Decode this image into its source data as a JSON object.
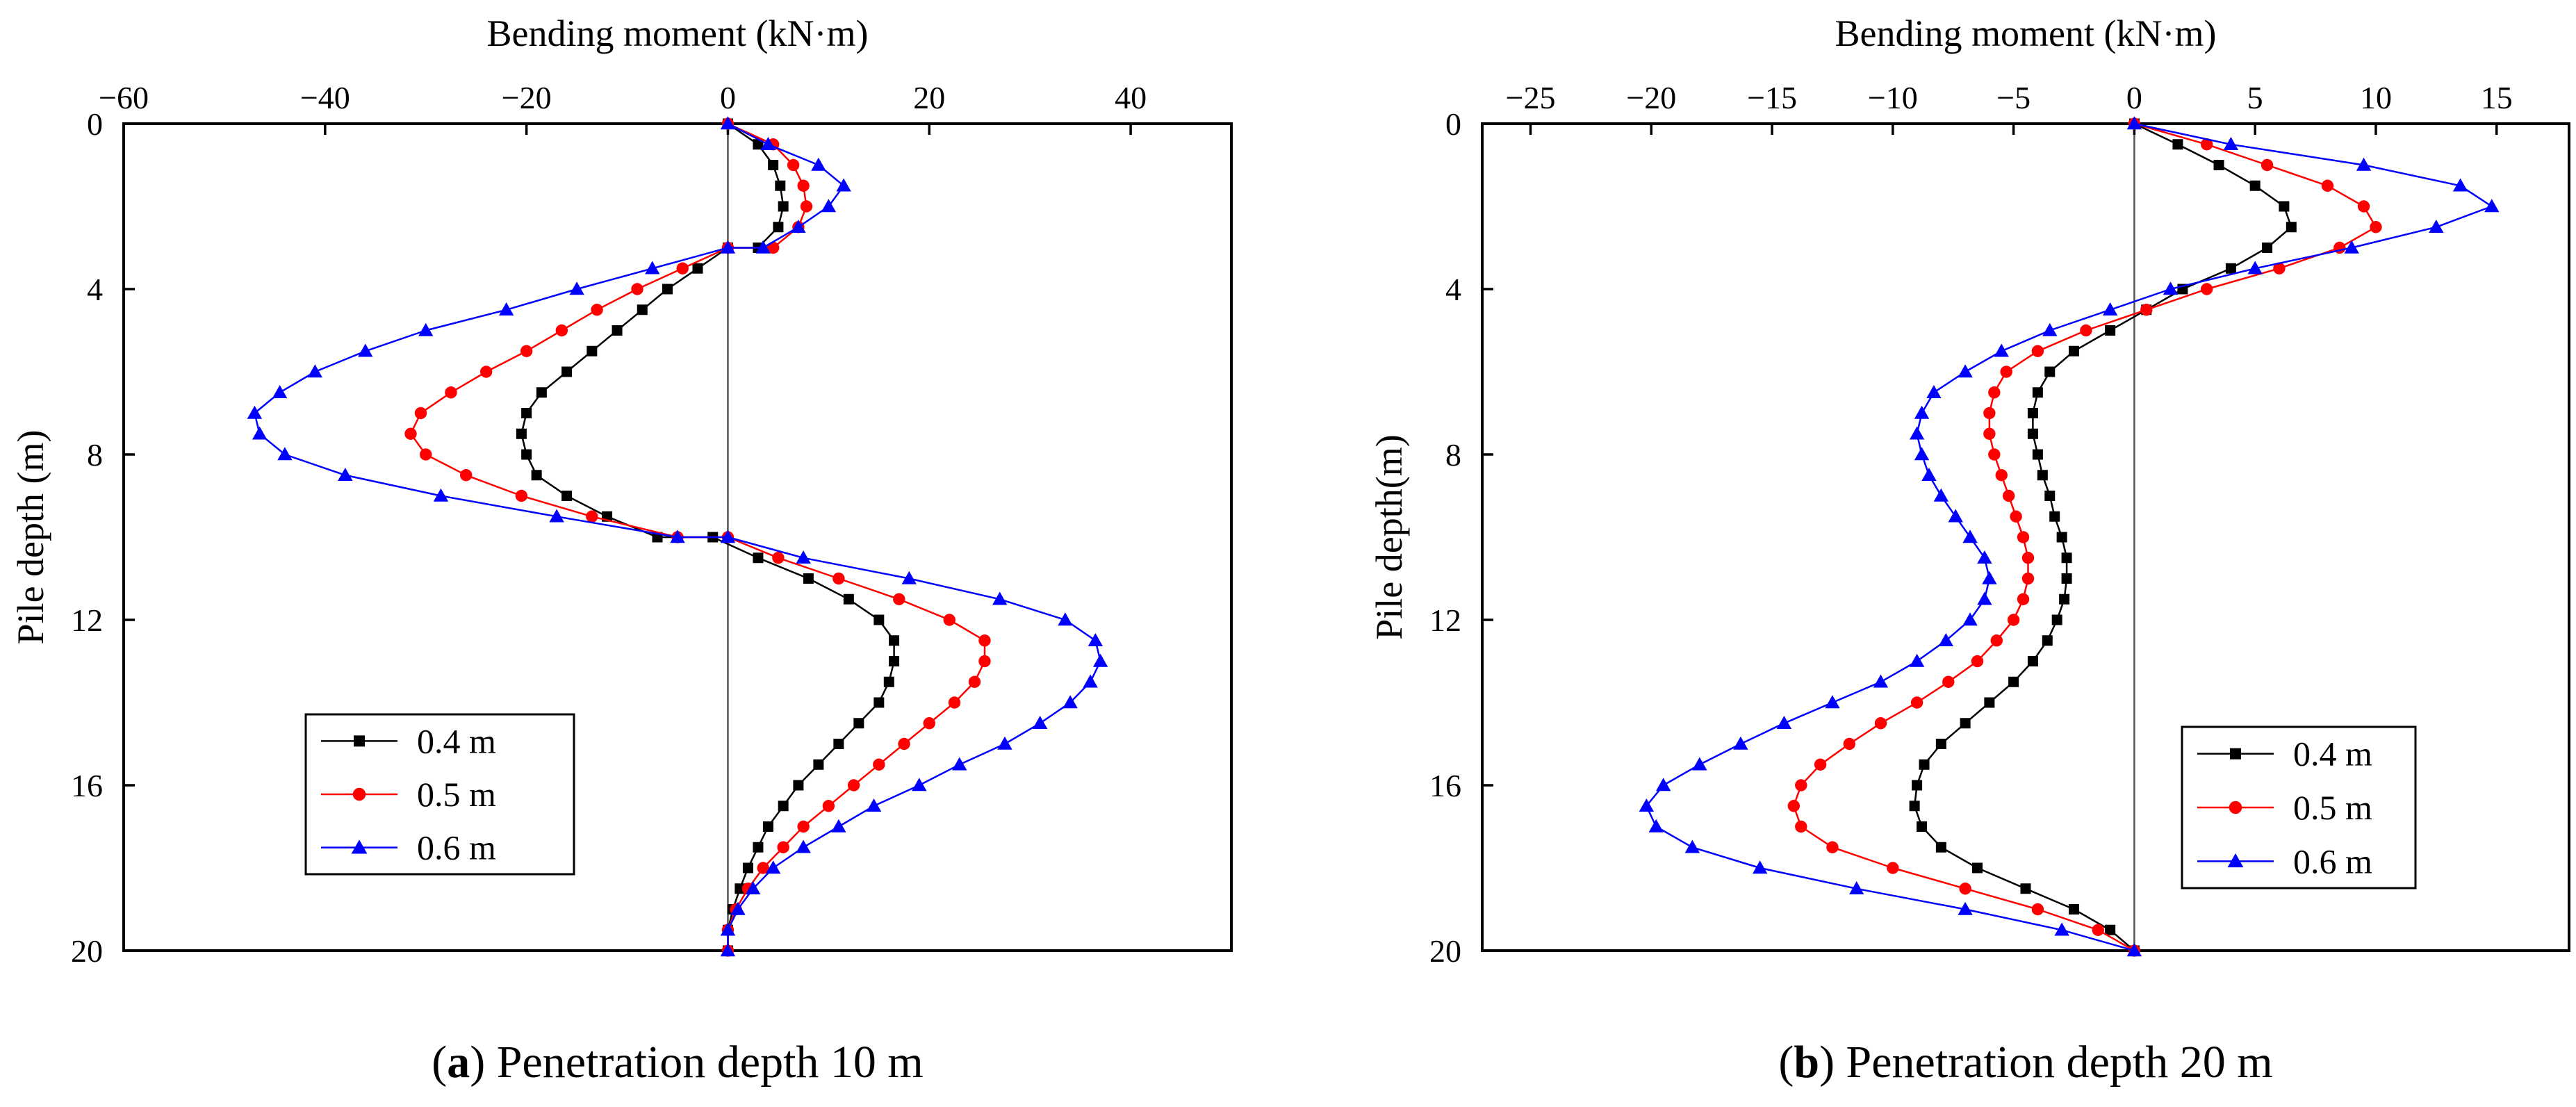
{
  "chart_data": [
    {
      "type": "line",
      "caption": {
        "letter": "a",
        "text": "Penetration depth 10 m"
      },
      "xlabel": "Bending moment (kN·m)",
      "ylabel": "Pile depth (m)",
      "xlim": [
        -60,
        50
      ],
      "ylim": [
        0,
        20
      ],
      "y_inverted": true,
      "x_axis_position": "top",
      "xticks": [
        -60,
        -40,
        -20,
        0,
        20,
        40
      ],
      "yticks": [
        0,
        4,
        8,
        12,
        16,
        20
      ],
      "zero_line": true,
      "legend_position": "lower-left",
      "series": [
        {
          "name": "0.4 m",
          "color": "#000000",
          "marker": "square",
          "points": [
            [
              0,
              0
            ],
            [
              3,
              0.5
            ],
            [
              4.5,
              1
            ],
            [
              5.2,
              1.5
            ],
            [
              5.5,
              2
            ],
            [
              5,
              2.5
            ],
            [
              3,
              3
            ],
            [
              0,
              3
            ],
            [
              -3,
              3.5
            ],
            [
              -6,
              4
            ],
            [
              -8.5,
              4.5
            ],
            [
              -11,
              5
            ],
            [
              -13.5,
              5.5
            ],
            [
              -16,
              6
            ],
            [
              -18.5,
              6.5
            ],
            [
              -20,
              7
            ],
            [
              -20.5,
              7.5
            ],
            [
              -20,
              8
            ],
            [
              -19,
              8.5
            ],
            [
              -16,
              9
            ],
            [
              -12,
              9.5
            ],
            [
              -7,
              10
            ],
            [
              -1.5,
              10
            ],
            [
              3,
              10.5
            ],
            [
              8,
              11
            ],
            [
              12,
              11.5
            ],
            [
              15,
              12
            ],
            [
              16.5,
              12.5
            ],
            [
              16.5,
              13
            ],
            [
              16,
              13.5
            ],
            [
              15,
              14
            ],
            [
              13,
              14.5
            ],
            [
              11,
              15
            ],
            [
              9,
              15.5
            ],
            [
              7,
              16
            ],
            [
              5.5,
              16.5
            ],
            [
              4,
              17
            ],
            [
              3,
              17.5
            ],
            [
              2,
              18
            ],
            [
              1.2,
              18.5
            ],
            [
              0.5,
              19
            ],
            [
              0,
              19.5
            ],
            [
              0,
              20
            ]
          ]
        },
        {
          "name": "0.5 m",
          "color": "#ff0000",
          "marker": "circle",
          "points": [
            [
              0,
              0
            ],
            [
              4.5,
              0.5
            ],
            [
              6.5,
              1
            ],
            [
              7.5,
              1.5
            ],
            [
              7.8,
              2
            ],
            [
              7,
              2.5
            ],
            [
              4.5,
              3
            ],
            [
              0,
              3
            ],
            [
              -4.5,
              3.5
            ],
            [
              -9,
              4
            ],
            [
              -13,
              4.5
            ],
            [
              -16.5,
              5
            ],
            [
              -20,
              5.5
            ],
            [
              -24,
              6
            ],
            [
              -27.5,
              6.5
            ],
            [
              -30.5,
              7
            ],
            [
              -31.5,
              7.5
            ],
            [
              -30,
              8
            ],
            [
              -26,
              8.5
            ],
            [
              -20.5,
              9
            ],
            [
              -13.5,
              9.5
            ],
            [
              -5,
              10
            ],
            [
              0,
              10
            ],
            [
              5,
              10.5
            ],
            [
              11,
              11
            ],
            [
              17,
              11.5
            ],
            [
              22,
              12
            ],
            [
              25.5,
              12.5
            ],
            [
              25.5,
              13
            ],
            [
              24.5,
              13.5
            ],
            [
              22.5,
              14
            ],
            [
              20,
              14.5
            ],
            [
              17.5,
              15
            ],
            [
              15,
              15.5
            ],
            [
              12.5,
              16
            ],
            [
              10,
              16.5
            ],
            [
              7.5,
              17
            ],
            [
              5.5,
              17.5
            ],
            [
              3.5,
              18
            ],
            [
              2,
              18.5
            ],
            [
              0.8,
              19
            ],
            [
              0,
              19.5
            ],
            [
              0,
              20
            ]
          ]
        },
        {
          "name": "0.6 m",
          "color": "#0000ff",
          "marker": "triangle",
          "points": [
            [
              0,
              0
            ],
            [
              4,
              0.5
            ],
            [
              9,
              1
            ],
            [
              11.5,
              1.5
            ],
            [
              10,
              2
            ],
            [
              7,
              2.5
            ],
            [
              3.5,
              3
            ],
            [
              0,
              3
            ],
            [
              -7.5,
              3.5
            ],
            [
              -15,
              4
            ],
            [
              -22,
              4.5
            ],
            [
              -30,
              5
            ],
            [
              -36,
              5.5
            ],
            [
              -41,
              6
            ],
            [
              -44.5,
              6.5
            ],
            [
              -47,
              7
            ],
            [
              -46.5,
              7.5
            ],
            [
              -44,
              8
            ],
            [
              -38,
              8.5
            ],
            [
              -28.5,
              9
            ],
            [
              -17,
              9.5
            ],
            [
              -5,
              10
            ],
            [
              0,
              10
            ],
            [
              7.5,
              10.5
            ],
            [
              18,
              11
            ],
            [
              27,
              11.5
            ],
            [
              33.5,
              12
            ],
            [
              36.5,
              12.5
            ],
            [
              37,
              13
            ],
            [
              36,
              13.5
            ],
            [
              34,
              14
            ],
            [
              31,
              14.5
            ],
            [
              27.5,
              15
            ],
            [
              23,
              15.5
            ],
            [
              19,
              16
            ],
            [
              14.5,
              16.5
            ],
            [
              11,
              17
            ],
            [
              7.5,
              17.5
            ],
            [
              4.5,
              18
            ],
            [
              2.5,
              18.5
            ],
            [
              1,
              19
            ],
            [
              0,
              19.5
            ],
            [
              0,
              20
            ]
          ]
        }
      ]
    },
    {
      "type": "line",
      "caption": {
        "letter": "b",
        "text": "Penetration depth 20 m"
      },
      "xlabel": "Bending moment (kN·m)",
      "ylabel": "Pile depth(m)",
      "xlim": [
        -27,
        18
      ],
      "ylim": [
        0,
        20
      ],
      "y_inverted": true,
      "x_axis_position": "top",
      "xticks": [
        -25,
        -20,
        -15,
        -10,
        -5,
        0,
        5,
        10,
        15
      ],
      "yticks": [
        0,
        4,
        8,
        12,
        16,
        20
      ],
      "zero_line": true,
      "legend_position": "lower-right",
      "series": [
        {
          "name": "0.4 m",
          "color": "#000000",
          "marker": "square",
          "points": [
            [
              0,
              0
            ],
            [
              1.8,
              0.5
            ],
            [
              3.5,
              1
            ],
            [
              5,
              1.5
            ],
            [
              6.2,
              2
            ],
            [
              6.5,
              2.5
            ],
            [
              5.5,
              3
            ],
            [
              4,
              3.5
            ],
            [
              2,
              4
            ],
            [
              0.5,
              4.5
            ],
            [
              -1,
              5
            ],
            [
              -2.5,
              5.5
            ],
            [
              -3.5,
              6
            ],
            [
              -4,
              6.5
            ],
            [
              -4.2,
              7
            ],
            [
              -4.2,
              7.5
            ],
            [
              -4,
              8
            ],
            [
              -3.8,
              8.5
            ],
            [
              -3.5,
              9
            ],
            [
              -3.3,
              9.5
            ],
            [
              -3,
              10
            ],
            [
              -2.8,
              10.5
            ],
            [
              -2.8,
              11
            ],
            [
              -2.9,
              11.5
            ],
            [
              -3.2,
              12
            ],
            [
              -3.6,
              12.5
            ],
            [
              -4.2,
              13
            ],
            [
              -5,
              13.5
            ],
            [
              -6,
              14
            ],
            [
              -7,
              14.5
            ],
            [
              -8,
              15
            ],
            [
              -8.7,
              15.5
            ],
            [
              -9,
              16
            ],
            [
              -9.1,
              16.5
            ],
            [
              -8.8,
              17
            ],
            [
              -8,
              17.5
            ],
            [
              -6.5,
              18
            ],
            [
              -4.5,
              18.5
            ],
            [
              -2.5,
              19
            ],
            [
              -1,
              19.5
            ],
            [
              0,
              20
            ]
          ]
        },
        {
          "name": "0.5 m",
          "color": "#ff0000",
          "marker": "circle",
          "points": [
            [
              0,
              0
            ],
            [
              3,
              0.5
            ],
            [
              5.5,
              1
            ],
            [
              8,
              1.5
            ],
            [
              9.5,
              2
            ],
            [
              10,
              2.5
            ],
            [
              8.5,
              3
            ],
            [
              6,
              3.5
            ],
            [
              3,
              4
            ],
            [
              0.5,
              4.5
            ],
            [
              -2,
              5
            ],
            [
              -4,
              5.5
            ],
            [
              -5.3,
              6
            ],
            [
              -5.8,
              6.5
            ],
            [
              -6,
              7
            ],
            [
              -6,
              7.5
            ],
            [
              -5.8,
              8
            ],
            [
              -5.5,
              8.5
            ],
            [
              -5.2,
              9
            ],
            [
              -4.9,
              9.5
            ],
            [
              -4.6,
              10
            ],
            [
              -4.4,
              10.5
            ],
            [
              -4.4,
              11
            ],
            [
              -4.6,
              11.5
            ],
            [
              -5,
              12
            ],
            [
              -5.7,
              12.5
            ],
            [
              -6.5,
              13
            ],
            [
              -7.7,
              13.5
            ],
            [
              -9,
              14
            ],
            [
              -10.5,
              14.5
            ],
            [
              -11.8,
              15
            ],
            [
              -13,
              15.5
            ],
            [
              -13.8,
              16
            ],
            [
              -14.1,
              16.5
            ],
            [
              -13.8,
              17
            ],
            [
              -12.5,
              17.5
            ],
            [
              -10,
              18
            ],
            [
              -7,
              18.5
            ],
            [
              -4,
              19
            ],
            [
              -1.5,
              19.5
            ],
            [
              0,
              20
            ]
          ]
        },
        {
          "name": "0.6 m",
          "color": "#0000ff",
          "marker": "triangle",
          "points": [
            [
              0,
              0
            ],
            [
              4,
              0.5
            ],
            [
              9.5,
              1
            ],
            [
              13.5,
              1.5
            ],
            [
              14.8,
              2
            ],
            [
              12.5,
              2.5
            ],
            [
              9,
              3
            ],
            [
              5,
              3.5
            ],
            [
              1.5,
              4
            ],
            [
              -1,
              4.5
            ],
            [
              -3.5,
              5
            ],
            [
              -5.5,
              5.5
            ],
            [
              -7,
              6
            ],
            [
              -8.3,
              6.5
            ],
            [
              -8.8,
              7
            ],
            [
              -9,
              7.5
            ],
            [
              -8.8,
              8
            ],
            [
              -8.5,
              8.5
            ],
            [
              -8,
              9
            ],
            [
              -7.4,
              9.5
            ],
            [
              -6.8,
              10
            ],
            [
              -6.2,
              10.5
            ],
            [
              -6,
              11
            ],
            [
              -6.2,
              11.5
            ],
            [
              -6.8,
              12
            ],
            [
              -7.8,
              12.5
            ],
            [
              -9,
              13
            ],
            [
              -10.5,
              13.5
            ],
            [
              -12.5,
              14
            ],
            [
              -14.5,
              14.5
            ],
            [
              -16.3,
              15
            ],
            [
              -18,
              15.5
            ],
            [
              -19.5,
              16
            ],
            [
              -20.2,
              16.5
            ],
            [
              -19.8,
              17
            ],
            [
              -18.3,
              17.5
            ],
            [
              -15.5,
              18
            ],
            [
              -11.5,
              18.5
            ],
            [
              -7,
              19
            ],
            [
              -3,
              19.5
            ],
            [
              0,
              20
            ]
          ]
        }
      ]
    }
  ]
}
